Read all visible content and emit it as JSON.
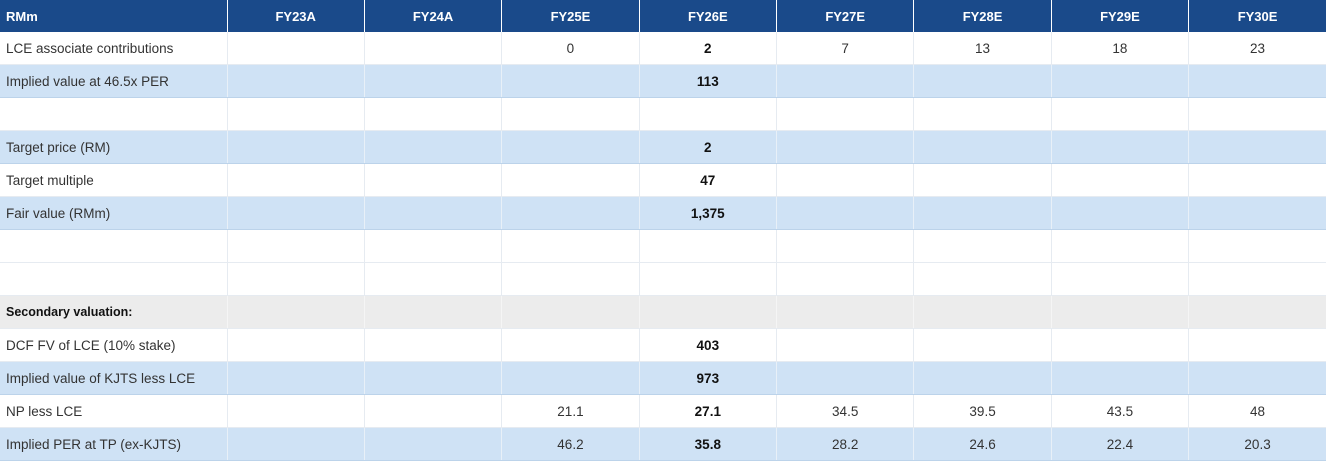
{
  "table": {
    "headers": [
      "RMm",
      "FY23A",
      "FY24A",
      "FY25E",
      "FY26E",
      "FY27E",
      "FY28E",
      "FY29E",
      "FY30E"
    ],
    "rows": [
      {
        "label": "LCE associate contributions",
        "values": [
          "",
          "",
          "0",
          "2",
          "7",
          "13",
          "18",
          "23"
        ]
      },
      {
        "label": "Implied value at 46.5x PER",
        "values": [
          "",
          "",
          "",
          "113",
          "",
          "",
          "",
          ""
        ]
      },
      {
        "label": "",
        "values": [
          "",
          "",
          "",
          "",
          "",
          "",
          "",
          ""
        ]
      },
      {
        "label": "Target price (RM)",
        "values": [
          "",
          "",
          "",
          "2",
          "",
          "",
          "",
          ""
        ]
      },
      {
        "label": "Target multiple",
        "values": [
          "",
          "",
          "",
          "47",
          "",
          "",
          "",
          ""
        ]
      },
      {
        "label": "Fair value (RMm)",
        "values": [
          "",
          "",
          "",
          "1,375",
          "",
          "",
          "",
          ""
        ]
      },
      {
        "label": "",
        "values": [
          "",
          "",
          "",
          "",
          "",
          "",
          "",
          ""
        ]
      },
      {
        "label": "",
        "values": [
          "",
          "",
          "",
          "",
          "",
          "",
          "",
          ""
        ]
      },
      {
        "label": "Secondary valuation:",
        "values": [
          "",
          "",
          "",
          "",
          "",
          "",
          "",
          ""
        ]
      },
      {
        "label": "DCF FV of LCE (10% stake)",
        "values": [
          "",
          "",
          "",
          "403",
          "",
          "",
          "",
          ""
        ]
      },
      {
        "label": "Implied value of KJTS less LCE",
        "values": [
          "",
          "",
          "",
          "973",
          "",
          "",
          "",
          ""
        ]
      },
      {
        "label": "NP less LCE",
        "values": [
          "",
          "",
          "21.1",
          "27.1",
          "34.5",
          "39.5",
          "43.5",
          "48"
        ]
      },
      {
        "label": "Implied PER at TP (ex-KJTS)",
        "values": [
          "",
          "",
          "46.2",
          "35.8",
          "28.2",
          "24.6",
          "22.4",
          "20.3"
        ]
      }
    ]
  }
}
